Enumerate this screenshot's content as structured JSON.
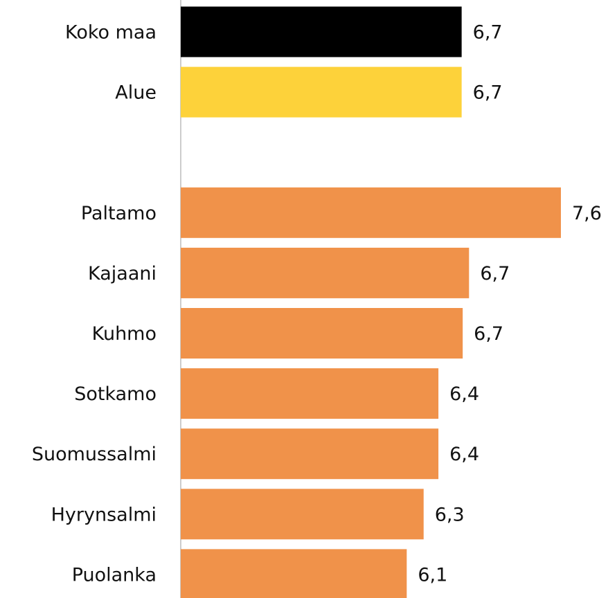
{
  "chart_data": {
    "type": "barh",
    "categories": [
      "Koko maa",
      "Alue",
      null,
      "Paltamo",
      "Kajaani",
      "Kuhmo",
      "Sotkamo",
      "Suomussalmi",
      "Hyrynsalmi",
      "Puolanka"
    ],
    "values": [
      6.66,
      6.66,
      null,
      7.6,
      6.73,
      6.67,
      6.44,
      6.44,
      6.3,
      6.14
    ],
    "value_labels": [
      "6,7",
      "6,7",
      null,
      "7,6",
      "6,7",
      "6,7",
      "6,4",
      "6,4",
      "6,3",
      "6,1"
    ],
    "colors": [
      "#000000",
      "#fdd23a",
      null,
      "#f0924a",
      "#f0924a",
      "#f0924a",
      "#f0924a",
      "#f0924a",
      "#f0924a",
      "#f0924a"
    ],
    "xlim": [
      4,
      8
    ]
  }
}
